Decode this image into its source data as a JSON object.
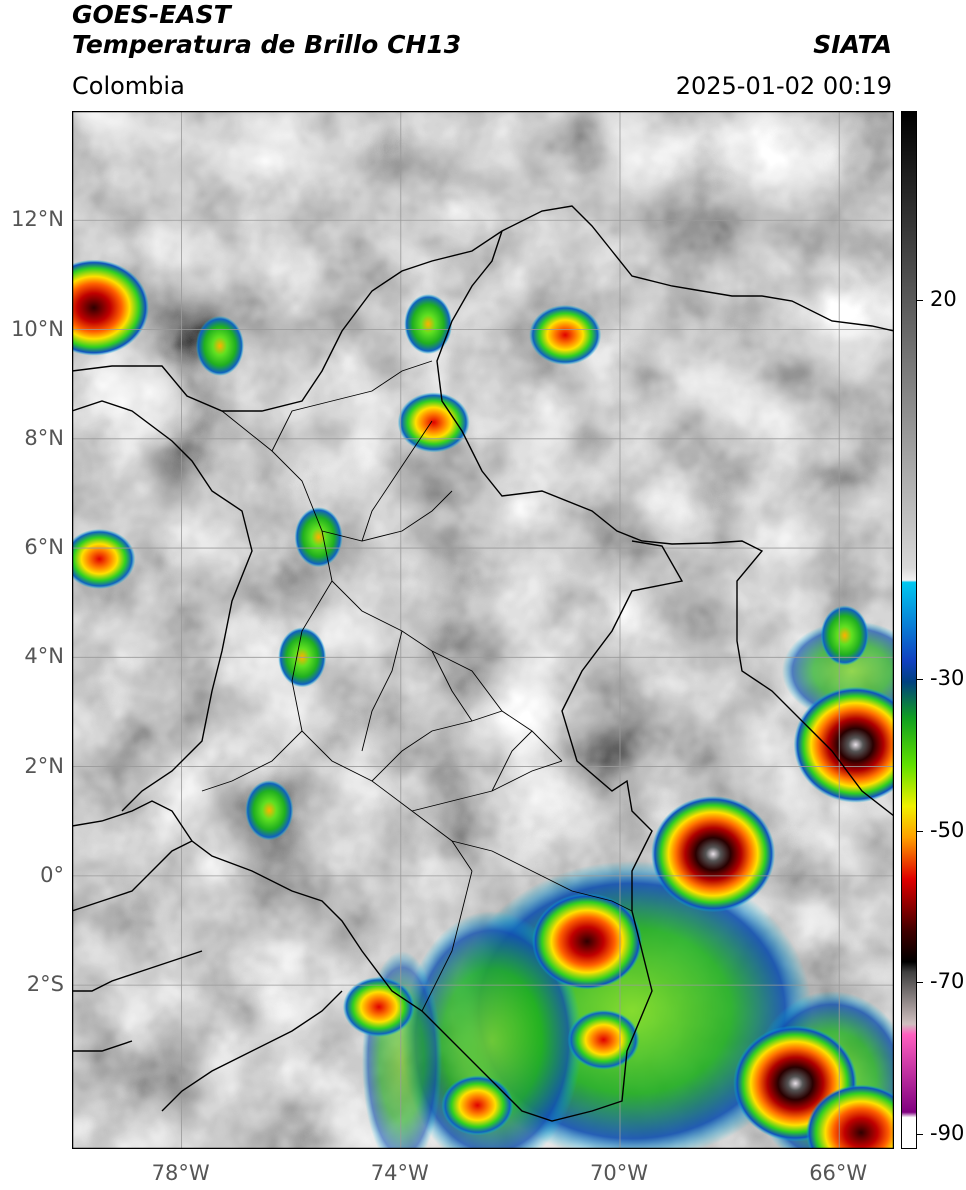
{
  "header": {
    "satellite": "GOES-EAST",
    "product": "Temperatura de Brillo CH13",
    "region": "Colombia",
    "agency": "SIATA",
    "datetime": "2025-01-02 00:19"
  },
  "map": {
    "extent": {
      "lon_min": -80,
      "lon_max": -65,
      "lat_min": -5,
      "lat_max": 14
    },
    "lat_ticks": [
      {
        "lat": 12,
        "label": "12°N"
      },
      {
        "lat": 10,
        "label": "10°N"
      },
      {
        "lat": 8,
        "label": "8°N"
      },
      {
        "lat": 6,
        "label": "6°N"
      },
      {
        "lat": 4,
        "label": "4°N"
      },
      {
        "lat": 2,
        "label": "2°N"
      },
      {
        "lat": 0,
        "label": "0°"
      },
      {
        "lat": -2,
        "label": "2°S"
      }
    ],
    "lon_ticks": [
      {
        "lon": -78,
        "label": "78°W"
      },
      {
        "lon": -74,
        "label": "74°W"
      },
      {
        "lon": -70,
        "label": "70°W"
      },
      {
        "lon": -66,
        "label": "66°W"
      }
    ]
  },
  "colorbar": {
    "vmin": -92,
    "vmax": 45,
    "ticks": [
      {
        "value": 20,
        "label": "20"
      },
      {
        "value": -30,
        "label": "-30"
      },
      {
        "value": -50,
        "label": "-50"
      },
      {
        "value": -70,
        "label": "-70"
      },
      {
        "value": -90,
        "label": "-90"
      }
    ]
  },
  "colors": {
    "frame": "#000000",
    "grid": "#9a9a9a",
    "tick_label": "#555555",
    "border": "#000000"
  },
  "storms": [
    {
      "lon": -79.6,
      "lat": 10.4,
      "intensity": "severe"
    },
    {
      "lon": -79.5,
      "lat": 5.8,
      "intensity": "strong"
    },
    {
      "lon": -77.3,
      "lat": 9.7,
      "intensity": "moderate"
    },
    {
      "lon": -73.4,
      "lat": 8.3,
      "intensity": "strong"
    },
    {
      "lon": -73.5,
      "lat": 10.1,
      "intensity": "moderate"
    },
    {
      "lon": -71.0,
      "lat": 9.9,
      "intensity": "strong"
    },
    {
      "lon": -75.5,
      "lat": 6.2,
      "intensity": "moderate"
    },
    {
      "lon": -65.9,
      "lat": 4.4,
      "intensity": "moderate"
    },
    {
      "lon": -65.7,
      "lat": 2.4,
      "intensity": "extreme"
    },
    {
      "lon": -68.3,
      "lat": 0.4,
      "intensity": "extreme"
    },
    {
      "lon": -70.6,
      "lat": -1.2,
      "intensity": "severe"
    },
    {
      "lon": -66.8,
      "lat": -3.8,
      "intensity": "extreme"
    },
    {
      "lon": -70.3,
      "lat": -3.0,
      "intensity": "strong"
    },
    {
      "lon": -74.4,
      "lat": -2.4,
      "intensity": "strong"
    },
    {
      "lon": -75.8,
      "lat": 4.0,
      "intensity": "moderate"
    },
    {
      "lon": -76.4,
      "lat": 1.2,
      "intensity": "moderate"
    },
    {
      "lon": -72.6,
      "lat": -4.2,
      "intensity": "strong"
    },
    {
      "lon": -65.6,
      "lat": -4.7,
      "intensity": "severe"
    }
  ]
}
